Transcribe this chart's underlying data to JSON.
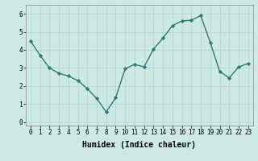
{
  "x": [
    0,
    1,
    2,
    3,
    4,
    5,
    6,
    7,
    8,
    9,
    10,
    11,
    12,
    13,
    14,
    15,
    16,
    17,
    18,
    19,
    20,
    21,
    22,
    23
  ],
  "y": [
    4.5,
    3.7,
    3.0,
    2.7,
    2.55,
    2.3,
    1.85,
    1.3,
    0.55,
    1.35,
    2.95,
    3.2,
    3.05,
    4.05,
    4.65,
    5.35,
    5.6,
    5.65,
    5.9,
    4.4,
    2.8,
    2.45,
    3.05,
    3.25
  ],
  "line_color": "#2e7d6e",
  "marker": "D",
  "marker_size": 2.2,
  "line_width": 1.0,
  "bg_color": "#cce9e5",
  "grid_color": "#b8d8d4",
  "xlabel": "Humidex (Indice chaleur)",
  "xlabel_fontsize": 7.0,
  "ylim": [
    -0.2,
    6.5
  ],
  "xlim": [
    -0.5,
    23.5
  ],
  "yticks": [
    0,
    1,
    2,
    3,
    4,
    5,
    6
  ],
  "xticks": [
    0,
    1,
    2,
    3,
    4,
    5,
    6,
    7,
    8,
    9,
    10,
    11,
    12,
    13,
    14,
    15,
    16,
    17,
    18,
    19,
    20,
    21,
    22,
    23
  ],
  "tick_fontsize": 5.5
}
